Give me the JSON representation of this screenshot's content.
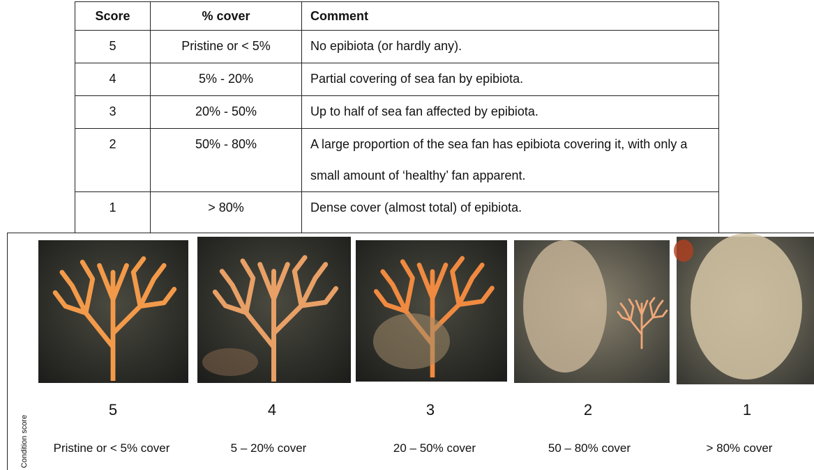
{
  "table": {
    "header": [
      "Score",
      "% cover",
      "Comment"
    ],
    "rows": [
      [
        "5",
        "Pristine or < 5%",
        "No epibiota (or hardly any)."
      ],
      [
        "4",
        "5% - 20%",
        "Partial covering of sea fan by epibiota."
      ],
      [
        "3",
        "20% - 50%",
        "Up to half of sea fan affected by epibiota."
      ],
      [
        "2",
        "50% - 80%",
        "A large proportion of the sea fan has epibiota covering it, with only a small amount of ‘healthy’ fan apparent."
      ],
      [
        "1",
        "> 80%",
        "Dense cover (almost total) of epibiota."
      ]
    ]
  },
  "figure": {
    "side_label": "Condition score",
    "panels": [
      {
        "score": "5",
        "caption": "Pristine or < 5% cover"
      },
      {
        "score": "4",
        "caption": "5 – 20% cover"
      },
      {
        "score": "3",
        "caption": "20 – 50% cover"
      },
      {
        "score": "2",
        "caption": "50 – 80% cover"
      },
      {
        "score": "1",
        "caption": "> 80% cover"
      }
    ]
  }
}
